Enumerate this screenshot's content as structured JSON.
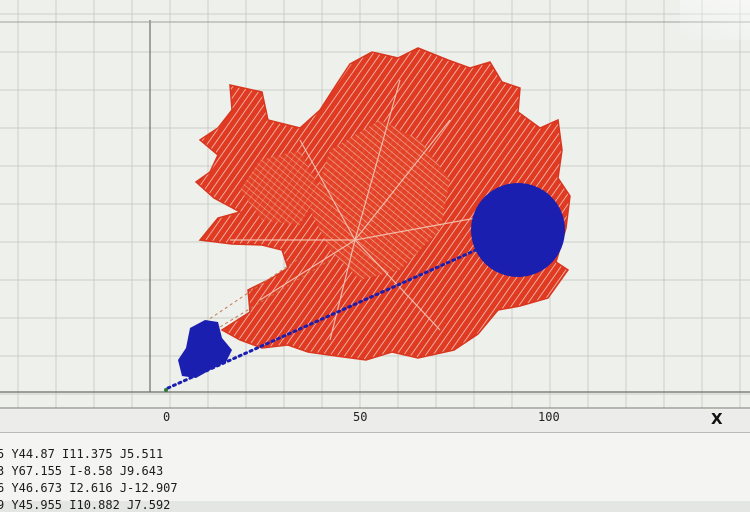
{
  "viewer": {
    "axis_x_label": "X",
    "x_ticks": [
      {
        "label": "0"
      },
      {
        "label": "50"
      },
      {
        "label": "100"
      }
    ],
    "toolpath_color": "#e03a22",
    "marker_color": "#1a1fb0",
    "rapid_path_color": "#1a1fb0"
  },
  "console": {
    "lines": [
      "5 Y44.87 I11.375 J5.511",
      "3 Y67.155 I-8.58 J9.643",
      "6 Y46.673 I2.616 J-12.907",
      "9 Y45.955 I10.882 J7.592"
    ]
  }
}
